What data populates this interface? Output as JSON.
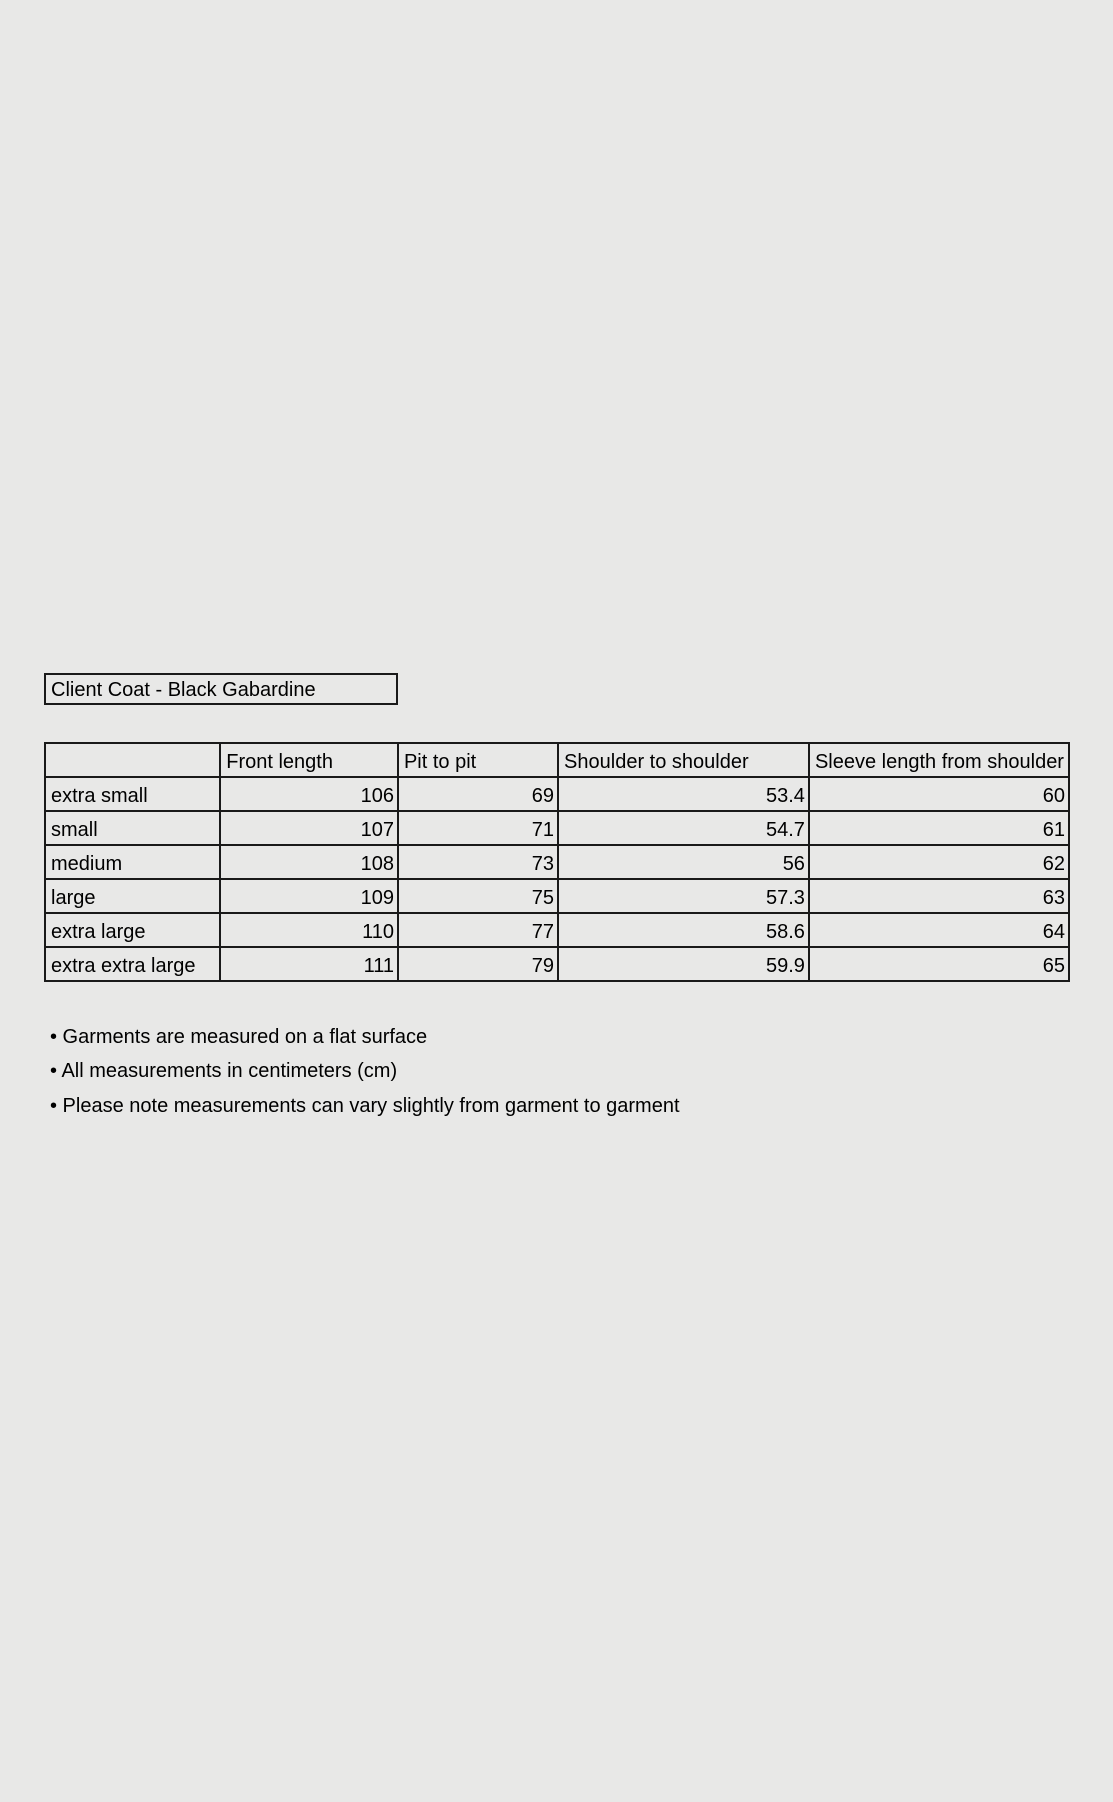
{
  "title": "Client Coat - Black Gabardine",
  "table": {
    "headers": [
      "",
      "Front length",
      "Pit to pit",
      "Shoulder to shoulder",
      "Sleeve length from shoulder"
    ],
    "rows": [
      [
        "extra small",
        "106",
        "69",
        "53.4",
        "60"
      ],
      [
        "small",
        "107",
        "71",
        "54.7",
        "61"
      ],
      [
        "medium",
        "108",
        "73",
        "56",
        "62"
      ],
      [
        "large",
        "109",
        "75",
        "57.3",
        "63"
      ],
      [
        "extra large",
        "110",
        "77",
        "58.6",
        "64"
      ],
      [
        "extra extra large",
        "111",
        "79",
        "59.9",
        "65"
      ]
    ]
  },
  "notes": [
    "• Garments are measured on a flat surface",
    "• All measurements in centimeters (cm)",
    "• Please note measurements can vary slightly from garment to garment"
  ]
}
